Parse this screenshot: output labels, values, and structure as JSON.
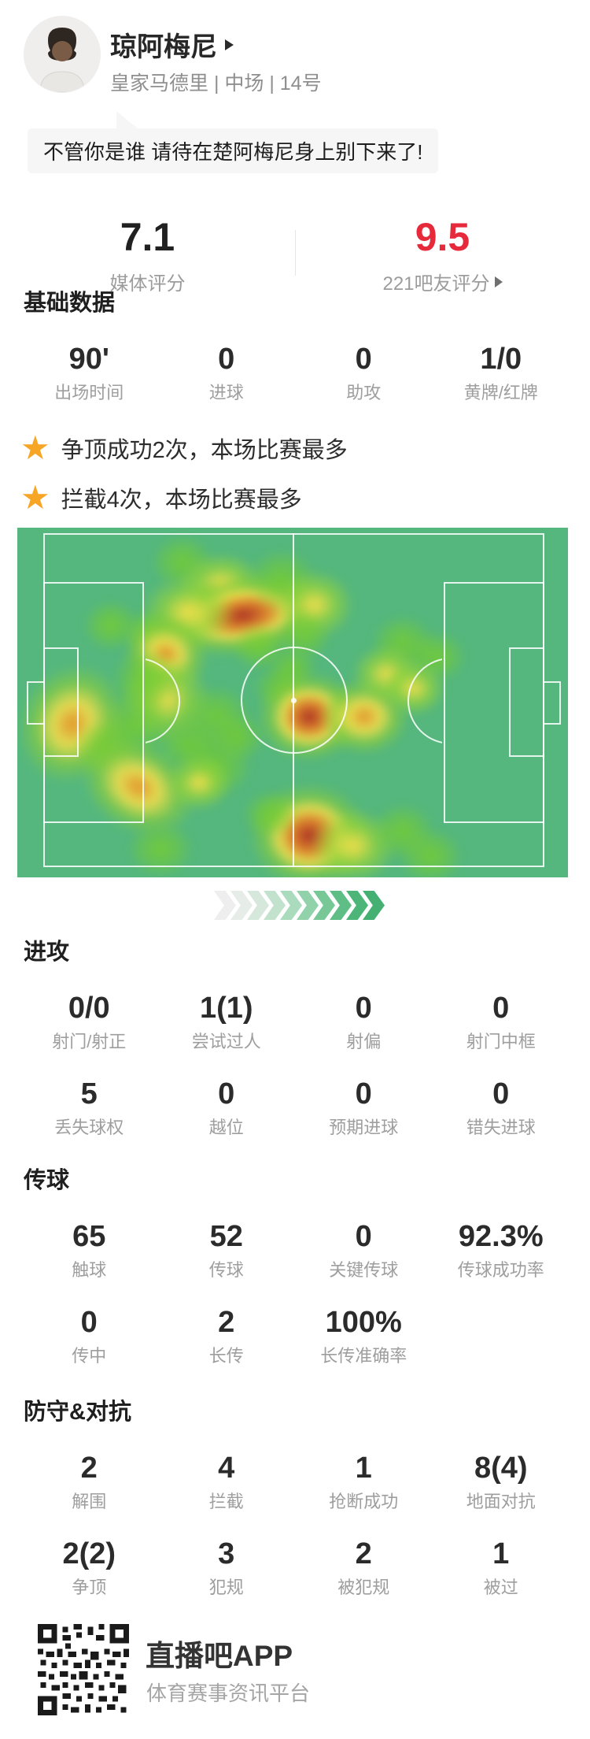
{
  "header": {
    "name": "琼阿梅尼",
    "team_line": "皇家马德里 | 中场 | 14号"
  },
  "quote": "不管你是谁 请待在楚阿梅尼身上别下来了!",
  "ratings": {
    "media": {
      "value": "7.1",
      "label": "媒体评分"
    },
    "fans": {
      "value": "9.5",
      "label": "221吧友评分"
    }
  },
  "highlights": [
    {
      "text": "争顶成功2次，本场比赛最多"
    },
    {
      "text": "拦截4次，本场比赛最多"
    }
  ],
  "sections": [
    {
      "id": "basic-data",
      "title": "基础数据",
      "rows": [
        [
          {
            "v": "90'",
            "l": "出场时间"
          },
          {
            "v": "0",
            "l": "进球"
          },
          {
            "v": "0",
            "l": "助攻"
          },
          {
            "v": "1/0",
            "l": "黄牌/红牌"
          }
        ]
      ]
    },
    {
      "id": "attack",
      "title": "进攻",
      "rows": [
        [
          {
            "v": "0/0",
            "l": "射门/射正"
          },
          {
            "v": "1(1)",
            "l": "尝试过人"
          },
          {
            "v": "0",
            "l": "射偏"
          },
          {
            "v": "0",
            "l": "射门中框"
          }
        ],
        [
          {
            "v": "5",
            "l": "丢失球权"
          },
          {
            "v": "0",
            "l": "越位"
          },
          {
            "v": "0",
            "l": "预期进球"
          },
          {
            "v": "0",
            "l": "错失进球"
          }
        ]
      ]
    },
    {
      "id": "passing",
      "title": "传球",
      "rows": [
        [
          {
            "v": "65",
            "l": "触球"
          },
          {
            "v": "52",
            "l": "传球"
          },
          {
            "v": "0",
            "l": "关键传球"
          },
          {
            "v": "92.3%",
            "l": "传球成功率"
          }
        ],
        [
          {
            "v": "0",
            "l": "传中"
          },
          {
            "v": "2",
            "l": "长传"
          },
          {
            "v": "100%",
            "l": "长传准确率"
          },
          {
            "v": "",
            "l": ""
          }
        ]
      ]
    },
    {
      "id": "defense",
      "title": "防守&对抗",
      "rows": [
        [
          {
            "v": "2",
            "l": "解围"
          },
          {
            "v": "4",
            "l": "拦截"
          },
          {
            "v": "1",
            "l": "抢断成功"
          },
          {
            "v": "8(4)",
            "l": "地面对抗"
          }
        ],
        [
          {
            "v": "2(2)",
            "l": "争顶"
          },
          {
            "v": "3",
            "l": "犯规"
          },
          {
            "v": "2",
            "l": "被犯规"
          },
          {
            "v": "1",
            "l": "被过"
          }
        ]
      ]
    }
  ],
  "heatmap": {
    "pitch_color": "#55b77d",
    "line_color": "rgba(255,255,255,0.85)",
    "blob_format": "[x_percent, y_percent, width_px, height_px, intensity(g|y|o|r), rotation_deg]",
    "blobs": [
      [
        30,
        10,
        80,
        70,
        "g",
        0
      ],
      [
        37,
        16,
        110,
        80,
        "y",
        0
      ],
      [
        41,
        25,
        215,
        105,
        "r",
        -8
      ],
      [
        31,
        24,
        120,
        95,
        "y",
        0
      ],
      [
        48,
        15,
        90,
        80,
        "g",
        0
      ],
      [
        54,
        22,
        100,
        90,
        "y",
        0
      ],
      [
        52,
        31,
        70,
        60,
        "g",
        0
      ],
      [
        17,
        28,
        72,
        65,
        "g",
        0
      ],
      [
        24,
        30,
        70,
        62,
        "g",
        0
      ],
      [
        27,
        36,
        110,
        95,
        "o",
        20
      ],
      [
        27,
        49,
        115,
        110,
        "y",
        0
      ],
      [
        21,
        57,
        95,
        85,
        "g",
        0
      ],
      [
        10,
        56,
        135,
        155,
        "o",
        25
      ],
      [
        16,
        63,
        85,
        75,
        "g",
        0
      ],
      [
        22,
        74,
        155,
        115,
        "o",
        30
      ],
      [
        26,
        92,
        85,
        72,
        "g",
        0
      ],
      [
        31,
        62,
        85,
        72,
        "g",
        0
      ],
      [
        36,
        68,
        95,
        82,
        "g",
        0
      ],
      [
        33,
        73,
        85,
        72,
        "y",
        0
      ],
      [
        40,
        60,
        72,
        62,
        "g",
        0
      ],
      [
        44,
        34,
        72,
        62,
        "g",
        0
      ],
      [
        48,
        46,
        72,
        62,
        "g",
        0
      ],
      [
        50,
        40,
        62,
        56,
        "g",
        0
      ],
      [
        53,
        54,
        135,
        115,
        "r",
        0
      ],
      [
        63,
        54,
        115,
        98,
        "o",
        0
      ],
      [
        70,
        33,
        82,
        72,
        "g",
        0
      ],
      [
        76,
        37,
        78,
        66,
        "g",
        0
      ],
      [
        67,
        42,
        88,
        76,
        "y",
        0
      ],
      [
        72,
        46,
        82,
        72,
        "y",
        0
      ],
      [
        53,
        88,
        155,
        135,
        "r",
        0
      ],
      [
        61,
        91,
        112,
        96,
        "y",
        0
      ],
      [
        46,
        82,
        72,
        62,
        "g",
        0
      ],
      [
        70,
        87,
        82,
        72,
        "g",
        0
      ],
      [
        75,
        94,
        82,
        72,
        "g",
        0
      ],
      [
        23,
        44,
        82,
        90,
        "g",
        0
      ],
      [
        36,
        54,
        92,
        80,
        "g",
        0
      ]
    ]
  },
  "chevrons": {
    "colors": [
      "#eeeeee",
      "#e6ece7",
      "#d6e8dc",
      "#c2e2cd",
      "#abdbbd",
      "#92d2aa",
      "#78c897",
      "#5fbe85",
      "#4db577",
      "#44b071"
    ]
  },
  "footer": {
    "app": "直播吧APP",
    "tagline": "体育赛事资讯平台"
  },
  "colors": {
    "fan_score_red": "#e6293b",
    "star_orange": "#f7a525",
    "value_dark": "#2b2b2b",
    "label_gray": "#9e9e9e"
  }
}
